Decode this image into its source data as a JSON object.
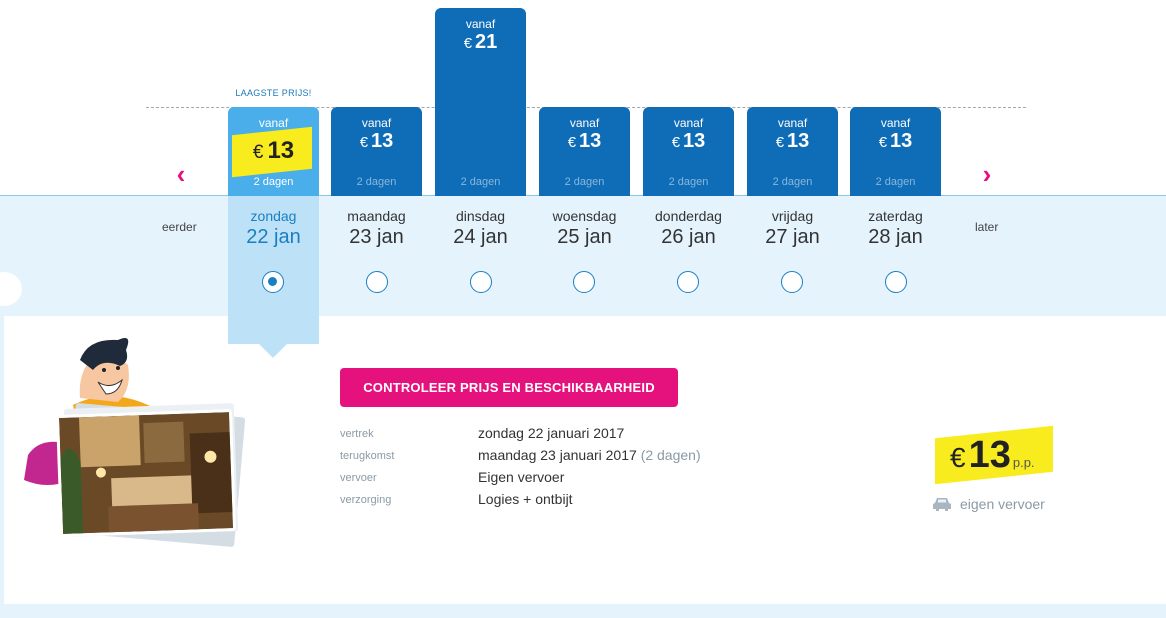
{
  "calendar": {
    "lowest_price_label": "LAAGSTE PRIJS!",
    "earlier_label": "eerder",
    "later_label": "later",
    "prev_arrow": "‹",
    "next_arrow": "›",
    "days": [
      {
        "vanaf": "vanaf",
        "currency": "€",
        "price": "13",
        "duration": "2 dagen",
        "weekday": "zondag",
        "date": "22 jan",
        "selected": true
      },
      {
        "vanaf": "vanaf",
        "currency": "€",
        "price": "13",
        "duration": "2 dagen",
        "weekday": "maandag",
        "date": "23 jan",
        "selected": false
      },
      {
        "vanaf": "vanaf",
        "currency": "€",
        "price": "21",
        "duration": "2 dagen",
        "weekday": "dinsdag",
        "date": "24 jan",
        "selected": false
      },
      {
        "vanaf": "vanaf",
        "currency": "€",
        "price": "13",
        "duration": "2 dagen",
        "weekday": "woensdag",
        "date": "25 jan",
        "selected": false
      },
      {
        "vanaf": "vanaf",
        "currency": "€",
        "price": "13",
        "duration": "2 dagen",
        "weekday": "donderdag",
        "date": "26 jan",
        "selected": false
      },
      {
        "vanaf": "vanaf",
        "currency": "€",
        "price": "13",
        "duration": "2 dagen",
        "weekday": "vrijdag",
        "date": "27 jan",
        "selected": false
      },
      {
        "vanaf": "vanaf",
        "currency": "€",
        "price": "13",
        "duration": "2 dagen",
        "weekday": "zaterdag",
        "date": "28 jan",
        "selected": false
      }
    ]
  },
  "details": {
    "cta_label": "CONTROLEER PRIJS EN BESCHIKBAARHEID",
    "rows": [
      {
        "key": "vertrek",
        "value": "zondag 22 januari 2017",
        "extra": ""
      },
      {
        "key": "terugkomst",
        "value": "maandag 23 januari 2017",
        "extra": "(2 dagen)"
      },
      {
        "key": "vervoer",
        "value": "Eigen vervoer",
        "extra": ""
      },
      {
        "key": "verzorging",
        "value": "Logies + ontbijt",
        "extra": ""
      }
    ],
    "final_price": {
      "currency": "€",
      "amount": "13",
      "suffix": "p.p."
    },
    "transport_label": "eigen vervoer"
  },
  "colors": {
    "accent_pink": "#e5127d",
    "bar_blue": "#0f6cb6",
    "selected_blue": "#49aeea",
    "highlight_yellow": "#f8ec1e"
  }
}
